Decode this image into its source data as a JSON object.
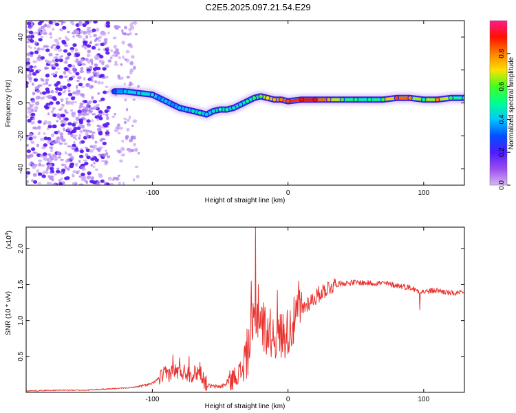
{
  "title": "C2E5.2025.097.21.54.E29",
  "colors": {
    "snr_line": "#e8322e",
    "axis": "#000000",
    "scatter": "#6a2bd9",
    "colorbar_stops": [
      "#d8b6f0",
      "#9a4cf0",
      "#4b1cff",
      "#0050ff",
      "#00c8ff",
      "#00ff90",
      "#40ff20",
      "#ffe000",
      "#ff8000",
      "#ff1000",
      "#ff1a8c"
    ]
  },
  "chart_data": [
    {
      "type": "heatmap",
      "title": "C2E5.2025.097.21.54.E29",
      "xlabel": "Height of straight line (km)",
      "ylabel": "Frequency (Hz)",
      "xlim": [
        -193,
        130
      ],
      "ylim": [
        -50,
        50
      ],
      "x_ticks": [
        -100,
        0,
        100
      ],
      "y_ticks": [
        -40,
        -20,
        0,
        20,
        40
      ],
      "x_tick_labels": [
        "-100",
        "0",
        "100"
      ],
      "y_tick_labels": [
        "-40",
        "-20",
        "0",
        "20",
        "40"
      ],
      "colorbar": {
        "label": "Normalized spectral amplitude",
        "range": [
          0,
          1
        ],
        "ticks": [
          0,
          0.2,
          0.4,
          0.6,
          0.8
        ],
        "tick_labels": [
          "0.0",
          "0.2",
          "0.4",
          "0.6",
          "0.8"
        ]
      },
      "ridge": {
        "x": [
          -128,
          -120,
          -110,
          -100,
          -95,
          -90,
          -85,
          -80,
          -75,
          -70,
          -65,
          -60,
          -55,
          -50,
          -45,
          -40,
          -35,
          -30,
          -25,
          -20,
          -15,
          -10,
          -5,
          0,
          10,
          20,
          30,
          40,
          50,
          60,
          70,
          80,
          90,
          100,
          110,
          120,
          130
        ],
        "freq": [
          7,
          7,
          6,
          5,
          3,
          1,
          -1,
          -3,
          -4,
          -5,
          -6,
          -7,
          -5,
          -4,
          -4,
          -3,
          -1,
          1,
          3,
          4,
          3,
          2,
          2,
          1,
          2,
          2,
          2,
          2,
          2,
          2,
          2,
          3,
          3,
          2,
          2,
          3,
          3
        ],
        "amplitude": [
          0.3,
          0.4,
          0.45,
          0.45,
          0.35,
          0.4,
          0.35,
          0.4,
          0.4,
          0.45,
          0.5,
          0.4,
          0.45,
          0.5,
          0.5,
          0.45,
          0.45,
          0.5,
          0.55,
          0.6,
          0.7,
          0.75,
          0.8,
          0.85,
          0.9,
          0.9,
          0.75,
          0.6,
          0.55,
          0.5,
          0.6,
          0.85,
          0.8,
          0.5,
          0.8,
          0.55,
          0.5
        ]
      },
      "noise_region": {
        "x_range": [
          -193,
          -110
        ],
        "amplitude": 0.1
      }
    },
    {
      "type": "line",
      "xlabel": "Height of straight line (km)",
      "ylabel": "SNR (10 * v/v)",
      "y_scale_label": "(x10",
      "y_scale_exponent": "4",
      "xlim": [
        -193,
        130
      ],
      "ylim": [
        0,
        2.3
      ],
      "x_ticks": [
        -100,
        0,
        100
      ],
      "y_ticks": [
        0.5,
        1.0,
        1.5,
        2.0
      ],
      "x_tick_labels": [
        "-100",
        "0",
        "100"
      ],
      "y_tick_labels": [
        "0.5",
        "1.0",
        "1.5",
        "2.0"
      ],
      "series": [
        {
          "name": "SNR",
          "x": [
            -193,
            -170,
            -150,
            -130,
            -120,
            -110,
            -100,
            -95,
            -90,
            -85,
            -80,
            -75,
            -70,
            -65,
            -60,
            -55,
            -50,
            -45,
            -40,
            -35,
            -30,
            -28,
            -25,
            -23,
            -20,
            -18,
            -15,
            -10,
            -5,
            0,
            5,
            10,
            15,
            20,
            25,
            30,
            35,
            40,
            50,
            60,
            70,
            80,
            90,
            95,
            100,
            110,
            120,
            130
          ],
          "y": [
            0.02,
            0.03,
            0.03,
            0.05,
            0.06,
            0.08,
            0.12,
            0.2,
            0.25,
            0.28,
            0.3,
            0.28,
            0.25,
            0.3,
            0.1,
            0.08,
            0.08,
            0.12,
            0.2,
            0.3,
            0.55,
            0.7,
            0.95,
            1.1,
            1.0,
            0.9,
            0.85,
            0.8,
            0.8,
            0.85,
            1.0,
            1.15,
            1.25,
            1.32,
            1.4,
            1.46,
            1.5,
            1.52,
            1.53,
            1.52,
            1.52,
            1.49,
            1.46,
            1.42,
            1.4,
            1.42,
            1.38,
            1.38
          ],
          "spikes": [
            {
              "x": -85,
              "y": 0.52
            },
            {
              "x": -80,
              "y": 0.48
            },
            {
              "x": -73,
              "y": 0.5
            },
            {
              "x": -65,
              "y": 0.42
            },
            {
              "x": -27,
              "y": 1.55
            },
            {
              "x": -24,
              "y": 2.3
            },
            {
              "x": -22,
              "y": 1.5
            },
            {
              "x": -18,
              "y": 1.25
            },
            {
              "x": -8,
              "y": 1.42
            },
            {
              "x": 8,
              "y": 1.55
            },
            {
              "x": 97,
              "y": 1.15
            }
          ]
        }
      ]
    }
  ]
}
